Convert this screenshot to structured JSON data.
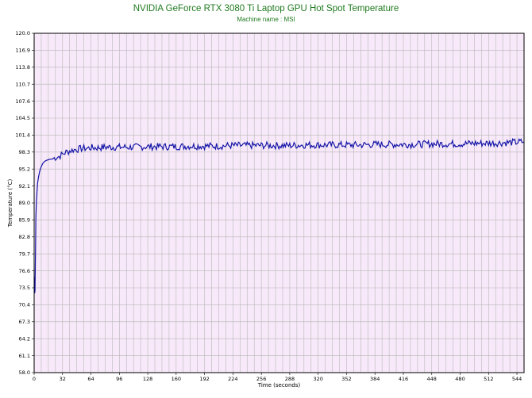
{
  "chart_data": {
    "type": "line",
    "title": "NVIDIA GeForce RTX 3080 Ti Laptop GPU Hot Spot Temperature",
    "subtitle": "Machine name : MSI",
    "xlabel": "Time (seconds)",
    "ylabel": "Temperature (°C)",
    "xlim": [
      0,
      552
    ],
    "ylim": [
      58.0,
      120.0
    ],
    "x_ticks": [
      "0",
      "32",
      "64",
      "96",
      "128",
      "160",
      "192",
      "224",
      "256",
      "288",
      "320",
      "352",
      "384",
      "416",
      "448",
      "480",
      "512",
      "544"
    ],
    "y_ticks": [
      "120.0",
      "116.9",
      "113.8",
      "110.7",
      "107.6",
      "104.5",
      "101.4",
      "98.3",
      "95.2",
      "92.1",
      "89.0",
      "85.9",
      "82.8",
      "79.7",
      "76.6",
      "73.5",
      "70.4",
      "67.3",
      "64.2",
      "61.1",
      "58.0"
    ],
    "grid": true,
    "colors": {
      "plot_background": "#f7e9f9",
      "grid": "#b8b8b8",
      "line": "#1515a8",
      "title": "#1f7a1f"
    },
    "series": [
      {
        "x": [
          0,
          0.5,
          1,
          1.5,
          2,
          2.5,
          3,
          3.5,
          4,
          5,
          6,
          7,
          8,
          9,
          10,
          12,
          14,
          16,
          18,
          20,
          24,
          28,
          32,
          36,
          40,
          44,
          48,
          52,
          56,
          60,
          64,
          72,
          80,
          88,
          96,
          112,
          128,
          144,
          160,
          176,
          192,
          208,
          224,
          240,
          256,
          272,
          288,
          304,
          320,
          336,
          352,
          368,
          384,
          400,
          416,
          432,
          448,
          464,
          480,
          496,
          512,
          528,
          544,
          552
        ],
        "y": [
          75.5,
          72.5,
          73.0,
          80.0,
          86.5,
          89.0,
          90.5,
          91.8,
          92.8,
          93.8,
          94.6,
          95.2,
          95.6,
          96.0,
          96.3,
          96.6,
          96.8,
          96.9,
          97.0,
          97.0,
          97.3,
          97.5,
          97.9,
          98.3,
          98.5,
          98.7,
          98.8,
          98.9,
          99.0,
          99.0,
          99.1,
          99.1,
          99.2,
          99.2,
          99.2,
          99.2,
          99.3,
          99.3,
          99.3,
          99.4,
          99.4,
          99.4,
          99.5,
          99.5,
          99.5,
          99.5,
          99.5,
          99.6,
          99.6,
          99.6,
          99.6,
          99.6,
          99.7,
          99.7,
          99.7,
          99.7,
          99.8,
          99.8,
          99.8,
          99.9,
          99.9,
          100.0,
          100.1,
          100.2
        ]
      }
    ]
  }
}
